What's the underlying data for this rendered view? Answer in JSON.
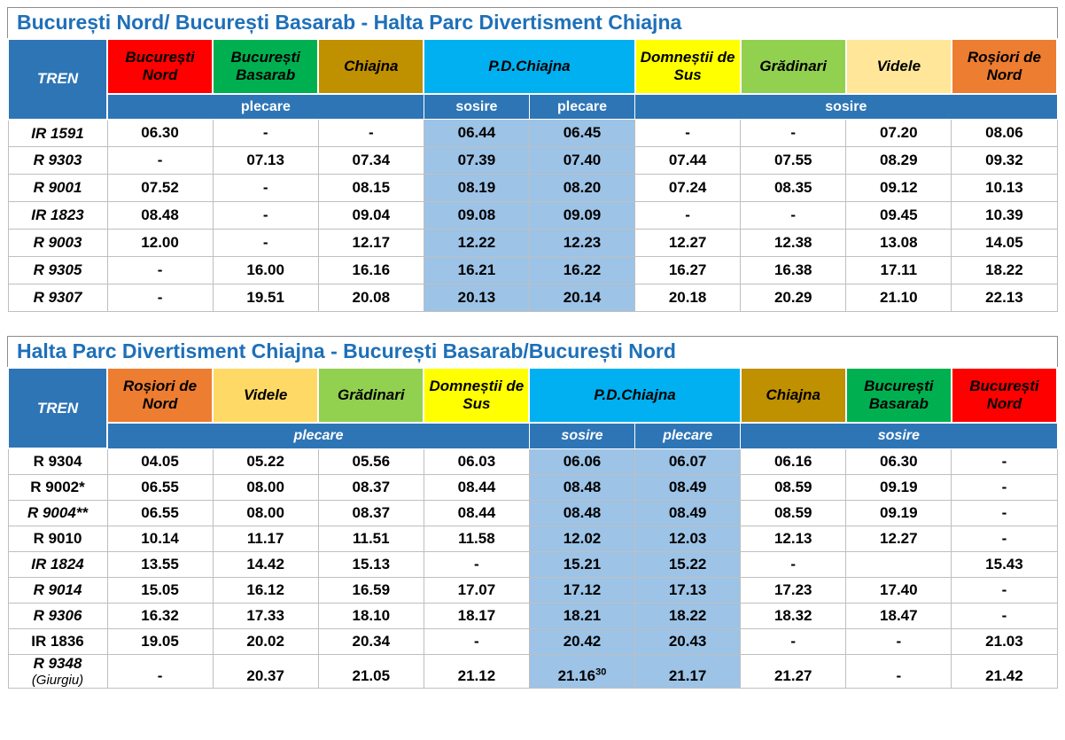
{
  "colors": {
    "title_text": "#1E70B8",
    "header_blue": "#2E75B6",
    "pd_column_fill": "#9DC3E6",
    "red": "#FF0000",
    "green": "#00B050",
    "dark_gold": "#BF9000",
    "cyan": "#00B0F0",
    "yellow": "#FFFF00",
    "light_green": "#92D050",
    "tan": "#FFE699",
    "gold_light": "#FFD966",
    "orange": "#ED7D31"
  },
  "table1": {
    "title": "București Nord/ București Basarab  - Halta Parc Divertisment Chiajna",
    "tren_label": "TREN",
    "stations": [
      {
        "label": "București Nord",
        "color": "#FF0000"
      },
      {
        "label": "București Basarab",
        "color": "#00B050"
      },
      {
        "label": "Chiajna",
        "color": "#BF9000"
      },
      {
        "label": "P.D.Chiajna",
        "color": "#00B0F0",
        "span": 2
      },
      {
        "label": "Domneștii de Sus",
        "color": "#FFFF00"
      },
      {
        "label": "Grădinari",
        "color": "#92D050"
      },
      {
        "label": "Videle",
        "color": "#FFE699"
      },
      {
        "label": "Roșiori de Nord",
        "color": "#ED7D31"
      }
    ],
    "subheader": [
      {
        "label": "plecare",
        "span": 3
      },
      {
        "label": "sosire",
        "span": 1
      },
      {
        "label": "plecare",
        "span": 1
      },
      {
        "label": "sosire",
        "span": 4
      }
    ],
    "subheader_italic": false,
    "highlight_cols": [
      3,
      4
    ],
    "rows": [
      {
        "train": "IR 1591",
        "italic": true,
        "cells": [
          "06.30",
          "-",
          "-",
          "06.44",
          "06.45",
          "-",
          "-",
          "07.20",
          "08.06"
        ]
      },
      {
        "train": "R 9303",
        "italic": true,
        "cells": [
          "-",
          "07.13",
          "07.34",
          "07.39",
          "07.40",
          "07.44",
          "07.55",
          "08.29",
          "09.32"
        ]
      },
      {
        "train": "R 9001",
        "italic": true,
        "cells": [
          "07.52",
          "-",
          "08.15",
          "08.19",
          "08.20",
          "07.24",
          "08.35",
          "09.12",
          "10.13"
        ]
      },
      {
        "train": "IR 1823",
        "italic": true,
        "cells": [
          "08.48",
          "-",
          "09.04",
          "09.08",
          "09.09",
          "-",
          "-",
          "09.45",
          "10.39"
        ]
      },
      {
        "train": "R 9003",
        "italic": true,
        "cells": [
          "12.00",
          "-",
          "12.17",
          "12.22",
          "12.23",
          "12.27",
          "12.38",
          "13.08",
          "14.05"
        ]
      },
      {
        "train": "R 9305",
        "italic": true,
        "cells": [
          "-",
          "16.00",
          "16.16",
          "16.21",
          "16.22",
          "16.27",
          "16.38",
          "17.11",
          "18.22"
        ]
      },
      {
        "train": "R 9307",
        "italic": true,
        "cells": [
          "-",
          "19.51",
          "20.08",
          "20.13",
          "20.14",
          "20.18",
          "20.29",
          "21.10",
          "22.13"
        ]
      }
    ]
  },
  "table2": {
    "title": "Halta Parc Divertisment Chiajna - București Basarab/București Nord",
    "tren_label": "TREN",
    "stations": [
      {
        "label": "Roșiori de Nord",
        "color": "#ED7D31"
      },
      {
        "label": "Videle",
        "color": "#FFD966"
      },
      {
        "label": "Grădinari",
        "color": "#92D050"
      },
      {
        "label": "Domneștii de Sus",
        "color": "#FFFF00"
      },
      {
        "label": "P.D.Chiajna",
        "color": "#00B0F0",
        "span": 2
      },
      {
        "label": "Chiajna",
        "color": "#BF9000"
      },
      {
        "label": "București Basarab",
        "color": "#00B050"
      },
      {
        "label": "București Nord",
        "color": "#FF0000"
      }
    ],
    "subheader": [
      {
        "label": "plecare",
        "span": 4
      },
      {
        "label": "sosire",
        "span": 1
      },
      {
        "label": "plecare",
        "span": 1
      },
      {
        "label": "sosire",
        "span": 3
      }
    ],
    "subheader_italic": true,
    "highlight_cols": [
      4,
      5
    ],
    "rows": [
      {
        "train": "R 9304",
        "italic": false,
        "cells": [
          "04.05",
          "05.22",
          "05.56",
          "06.03",
          "06.06",
          "06.07",
          "06.16",
          "06.30",
          "-"
        ]
      },
      {
        "train": "R 9002*",
        "italic": false,
        "cells": [
          "06.55",
          "08.00",
          "08.37",
          "08.44",
          "08.48",
          "08.49",
          "08.59",
          "09.19",
          "-"
        ]
      },
      {
        "train": "R 9004**",
        "italic": true,
        "cells": [
          "06.55",
          "08.00",
          "08.37",
          "08.44",
          "08.48",
          "08.49",
          "08.59",
          "09.19",
          "-"
        ]
      },
      {
        "train": "R 9010",
        "italic": false,
        "cells": [
          "10.14",
          "11.17",
          "11.51",
          "11.58",
          "12.02",
          "12.03",
          "12.13",
          "12.27",
          "-"
        ]
      },
      {
        "train": "IR 1824",
        "italic": true,
        "cells": [
          "13.55",
          "14.42",
          "15.13",
          "-",
          "15.21",
          "15.22",
          "-",
          "",
          "15.43"
        ]
      },
      {
        "train": "R 9014",
        "italic": true,
        "cells": [
          "15.05",
          "16.12",
          "16.59",
          "17.07",
          "17.12",
          "17.13",
          "17.23",
          "17.40",
          "-"
        ]
      },
      {
        "train": "R 9306",
        "italic": true,
        "cells": [
          "16.32",
          "17.33",
          "18.10",
          "18.17",
          "18.21",
          "18.22",
          "18.32",
          "18.47",
          "-"
        ]
      },
      {
        "train": "IR 1836",
        "italic": false,
        "cells": [
          "19.05",
          "20.02",
          "20.34",
          "-",
          "20.42",
          "20.43",
          "-",
          "-",
          "21.03"
        ]
      },
      {
        "train": "R 9348",
        "note": "(Giurgiu)",
        "italic": true,
        "tall": true,
        "cells": [
          "-",
          "20.37",
          "21.05",
          "21.12",
          {
            "v": "21.16",
            "sup": "30"
          },
          "21.17",
          "21.27",
          "-",
          "21.42"
        ]
      }
    ]
  }
}
